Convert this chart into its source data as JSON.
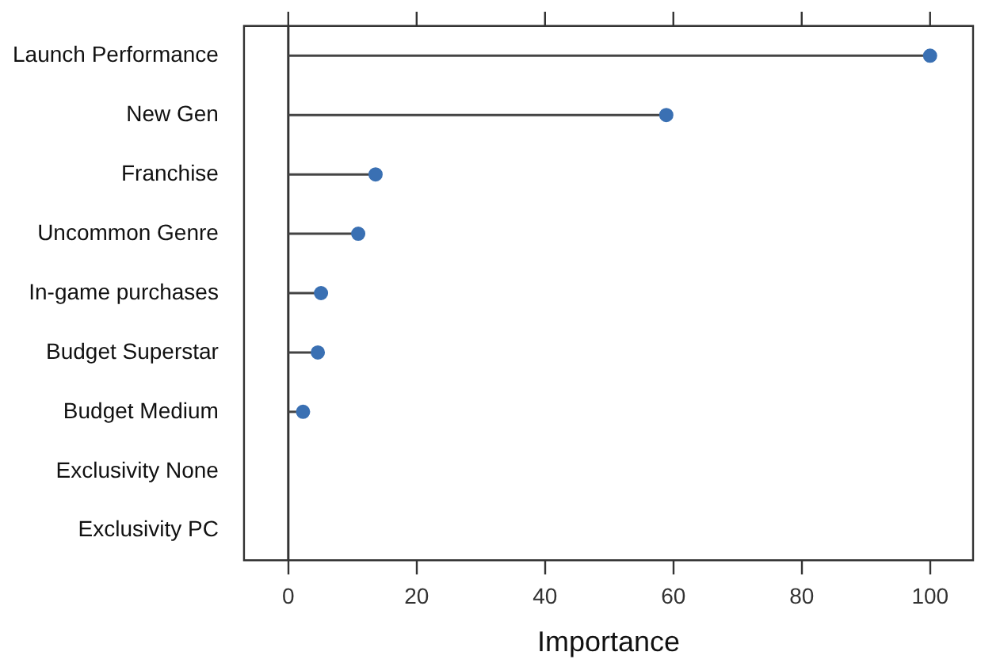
{
  "chart_data": {
    "type": "lollipop",
    "orientation": "horizontal",
    "xlabel": "Importance",
    "categories": [
      "Launch Performance",
      "New Gen",
      "Franchise",
      "Uncommon Genre",
      "In-game purchases",
      "Budget Superstar",
      "Budget Medium",
      "Exclusivity None",
      "Exclusivity PC"
    ],
    "values": [
      100,
      58.9,
      13.6,
      10.9,
      5.1,
      4.6,
      2.3,
      null,
      null
    ],
    "color": "#3a70b3",
    "marker": "circle",
    "xlim": [
      -6.9,
      106.7
    ],
    "xticks": [
      0,
      20,
      40,
      60,
      80,
      100
    ],
    "ref_lines": [
      {
        "axis": "x",
        "value": 0,
        "color": "#333333"
      }
    ],
    "grid": false,
    "legend": false
  }
}
